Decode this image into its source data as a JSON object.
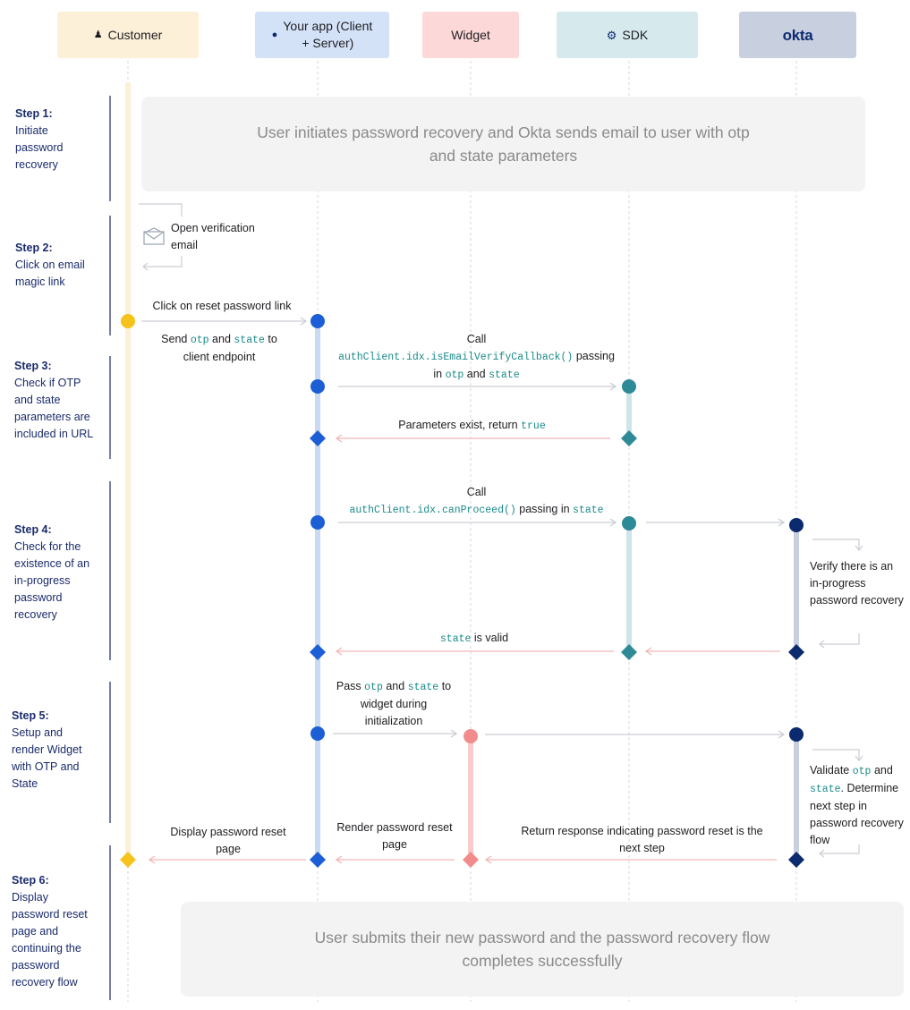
{
  "lanes": {
    "customer": {
      "label": "Customer",
      "icon": "person-icon",
      "bg": "#fdf0d8"
    },
    "app": {
      "label": "Your app (Client + Server)",
      "icon": "globe-icon",
      "bg": "#d4e2f7"
    },
    "widget": {
      "label": "Widget",
      "bg": "#fdd8d8"
    },
    "sdk": {
      "label": "SDK",
      "icon": "gear-icon",
      "bg": "#d6e9ec"
    },
    "okta": {
      "label": "okta",
      "bg": "#c8d0e0"
    }
  },
  "colors": {
    "customer": "#f5c31b",
    "app": "#1b5ed6",
    "widget": "#f28b8b",
    "sdk": "#2e8a96",
    "okta": "#0c2a6e",
    "step_text": "#1a2b6b",
    "code": "#1a8a8a"
  },
  "steps": [
    {
      "title": "Step 1:",
      "text": "Initiate password recovery"
    },
    {
      "title": "Step 2:",
      "text": "Click on email magic link"
    },
    {
      "title": "Step 3:",
      "text": "Check if OTP and state parameters are included in URL"
    },
    {
      "title": "Step 4:",
      "text": "Check for the existence of an in-progress password recovery"
    },
    {
      "title": "Step 5:",
      "text": "Setup and render Widget with OTP and State"
    },
    {
      "title": "Step 6:",
      "text": "Display password reset page and continuing the password recovery flow"
    }
  ],
  "banners": {
    "top": "User initiates password recovery and Okta sends email to user with otp and state parameters",
    "bottom": "User submits their new password and the password recovery flow completes successfully"
  },
  "messages": {
    "open_email": "Open verification email",
    "click_reset": "Click on reset password link",
    "send_a": "Send",
    "send_otp": "otp",
    "send_and": "and",
    "send_state": "state",
    "send_to": "to",
    "send_b": "client endpoint",
    "call1_a": "Call",
    "call1_code": "authClient.idx.isEmailVerifyCallback()",
    "call1_passing": "passing",
    "call1_in": "in",
    "call1_otp": "otp",
    "call1_and": "and",
    "call1_state": "state",
    "params_exist": "Parameters exist, return",
    "params_true": "true",
    "call2_a": "Call",
    "call2_code": "authClient.idx.canProceed()",
    "call2_passing": "passing in",
    "call2_state": "state",
    "verify": "Verify there is an in-progress password recovery",
    "state_valid_code": "state",
    "state_valid": "is valid",
    "pass_a": "Pass",
    "pass_otp": "otp",
    "pass_and": "and",
    "pass_state": "state",
    "pass_to": "to",
    "pass_b": "widget during initialization",
    "validate_a": "Validate",
    "validate_otp": "otp",
    "validate_and": "and",
    "validate_state": "state",
    "validate_b": ". Determine next step in password recovery flow",
    "return_resp": "Return response indicating password reset is the next step",
    "render_reset": "Render password reset page",
    "display_reset": "Display password reset page"
  }
}
